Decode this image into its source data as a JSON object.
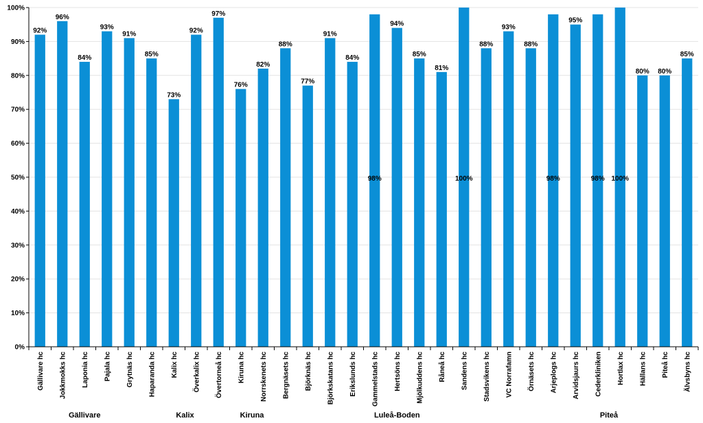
{
  "chart_data": {
    "type": "bar",
    "ylim": [
      0,
      100
    ],
    "y_ticks": [
      "0%",
      "10%",
      "20%",
      "30%",
      "40%",
      "50%",
      "60%",
      "70%",
      "80%",
      "90%",
      "100%"
    ],
    "grid": true,
    "bar_color": "#0b8fd6",
    "categories": [
      "Gällivare hc",
      "Jokkmokks hc",
      "Laponia hc",
      "Pajala hc",
      "Grytnäs hc",
      "Haparanda hc",
      "Kalix hc",
      "Överkalix hc",
      "Övertorneå hc",
      "Kiruna hc",
      "Norrskenets hc",
      "Bergnäsets hc",
      "Björknäs hc",
      "Björkskatans hc",
      "Erikslunds hc",
      "Gammelstads hc",
      "Hertsöns hc",
      "Mjölkuddens hc",
      "Råneå hc",
      "Sandens hc",
      "Stadsvikens hc",
      "VC Norrafamn",
      "Örnäsets hc",
      "Arjeplogs hc",
      "Arvidsjaurs hc",
      "Cederkliniken",
      "Hortlax hc",
      "Hällans hc",
      "Piteå hc",
      "Älvsbyns hc"
    ],
    "values": [
      92,
      96,
      84,
      93,
      91,
      85,
      73,
      92,
      97,
      76,
      82,
      88,
      77,
      91,
      84,
      98,
      94,
      85,
      81,
      100,
      88,
      93,
      88,
      98,
      95,
      98,
      100,
      80,
      80,
      85
    ],
    "labels": [
      "92%",
      "96%",
      "84%",
      "93%",
      "91%",
      "85%",
      "73%",
      "92%",
      "97%",
      "76%",
      "82%",
      "88%",
      "77%",
      "91%",
      "84%",
      "98%",
      "94%",
      "85%",
      "81%",
      "100%",
      "88%",
      "93%",
      "88%",
      "98%",
      "95%",
      "98%",
      "100%",
      "80%",
      "80%",
      "85%"
    ],
    "label_inside": [
      false,
      false,
      false,
      false,
      false,
      false,
      false,
      false,
      false,
      false,
      false,
      false,
      false,
      false,
      false,
      true,
      false,
      false,
      false,
      true,
      false,
      false,
      false,
      true,
      false,
      true,
      true,
      false,
      false,
      false
    ],
    "groups": [
      {
        "name": "Gällivare",
        "start": 0,
        "end": 4
      },
      {
        "name": "Kalix",
        "start": 5,
        "end": 8
      },
      {
        "name": "Kiruna",
        "start": 9,
        "end": 10
      },
      {
        "name": "Luleå-Boden",
        "start": 11,
        "end": 21
      },
      {
        "name": "Piteå",
        "start": 22,
        "end": 29
      }
    ]
  }
}
